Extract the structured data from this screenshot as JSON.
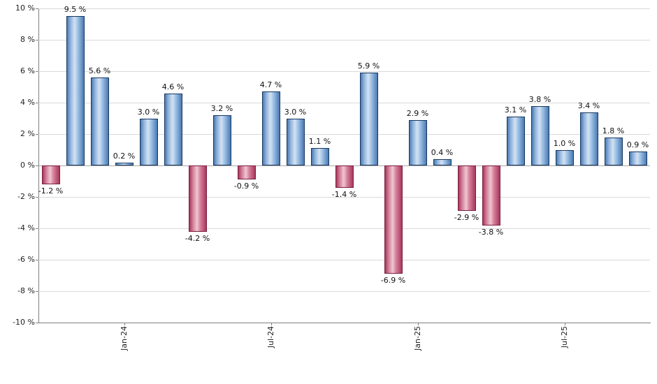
{
  "chart_data": {
    "type": "bar",
    "title": "",
    "values": [
      -1.2,
      9.5,
      5.6,
      0.2,
      3.0,
      4.6,
      -4.2,
      3.2,
      -0.9,
      4.7,
      3.0,
      1.1,
      -1.4,
      5.9,
      -6.9,
      2.9,
      0.4,
      -2.9,
      -3.8,
      3.1,
      3.8,
      1.0,
      3.4,
      1.8,
      0.9
    ],
    "bar_count": 25,
    "value_label_decimals": 1,
    "value_label_suffix": " %",
    "x_ticks": [
      {
        "index": 3,
        "label": "Jan-24"
      },
      {
        "index": 9,
        "label": "Jul-24"
      },
      {
        "index": 15,
        "label": "Jan-25"
      },
      {
        "index": 21,
        "label": "Jul-25"
      }
    ],
    "yticks": [
      -10,
      -8,
      -6,
      -4,
      -2,
      0,
      2,
      4,
      6,
      8,
      10
    ],
    "ytick_label_suffix": " %",
    "ylim": [
      -10,
      10
    ],
    "grid": true,
    "legend": "none",
    "colors": {
      "positive_fill_dark": "#4a7ab3",
      "positive_border": "#17375e",
      "negative_fill_dark": "#a8375d",
      "negative_border": "#7a1e40",
      "gridline": "#d9d9d9",
      "axis": "#808080",
      "label_text": "#111111"
    }
  }
}
